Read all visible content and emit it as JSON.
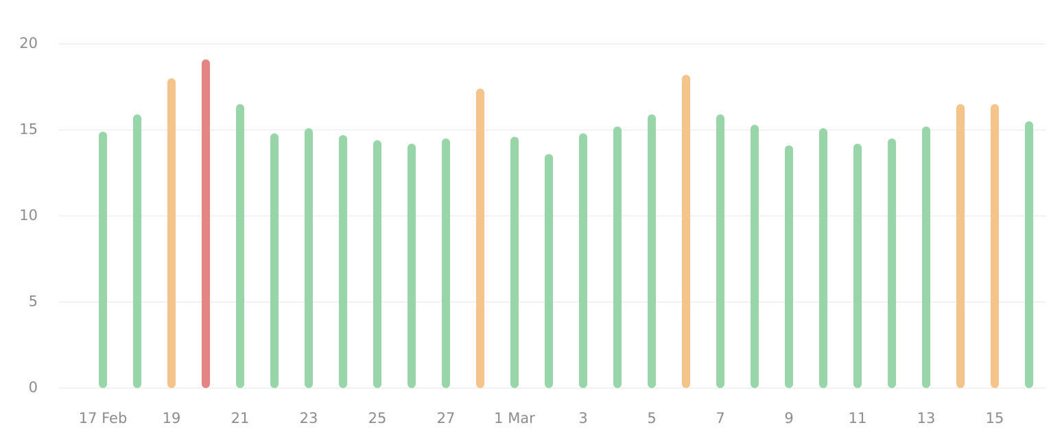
{
  "chart_data": {
    "type": "bar",
    "categories": [
      "17 Feb",
      null,
      "19",
      null,
      "21",
      null,
      "23",
      null,
      "25",
      null,
      "27",
      null,
      "1 Mar",
      null,
      "3",
      null,
      "5",
      null,
      "7",
      null,
      "9",
      null,
      "11",
      null,
      "13",
      null,
      "15",
      null
    ],
    "values": [
      14.9,
      15.9,
      18.0,
      19.1,
      16.5,
      14.8,
      15.1,
      14.7,
      14.4,
      14.2,
      14.5,
      17.4,
      14.6,
      13.6,
      14.8,
      15.2,
      15.9,
      18.2,
      15.9,
      15.3,
      14.1,
      15.1,
      14.2,
      14.5,
      15.2,
      16.5,
      16.5,
      15.5
    ],
    "colors": [
      "#98d6a9",
      "#98d6a9",
      "#f5c48a",
      "#e38583",
      "#98d6a9",
      "#98d6a9",
      "#98d6a9",
      "#98d6a9",
      "#98d6a9",
      "#98d6a9",
      "#98d6a9",
      "#f5c48a",
      "#98d6a9",
      "#98d6a9",
      "#98d6a9",
      "#98d6a9",
      "#98d6a9",
      "#f5c48a",
      "#98d6a9",
      "#98d6a9",
      "#98d6a9",
      "#98d6a9",
      "#98d6a9",
      "#98d6a9",
      "#98d6a9",
      "#f5c48a",
      "#f5c48a",
      "#98d6a9"
    ],
    "ylim": [
      0,
      20
    ],
    "yticks": [
      0,
      5,
      10,
      15,
      20
    ],
    "grid": true
  }
}
